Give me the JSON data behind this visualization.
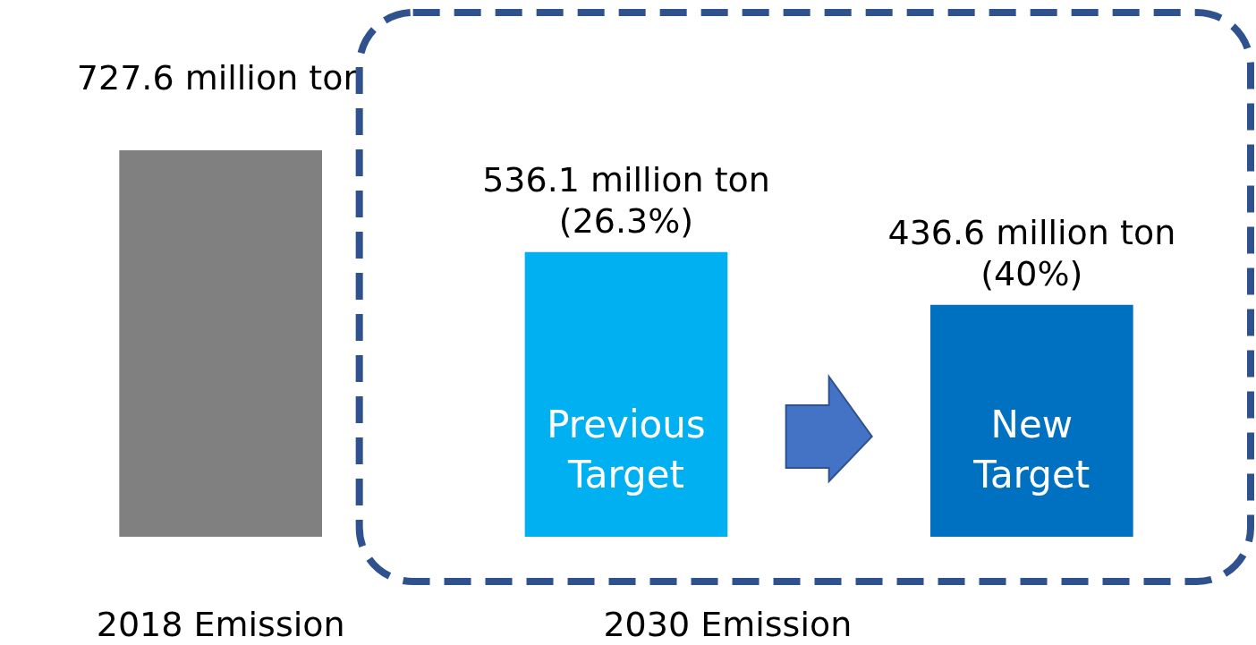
{
  "chart_data": {
    "type": "bar",
    "categories": [
      "2018 Emission",
      "Previous Target",
      "New Target"
    ],
    "values": [
      727.6,
      536.1,
      436.6
    ],
    "colors": [
      "#808080",
      "#00b0f0",
      "#0070c0"
    ],
    "value_labels": [
      "727.6 million ton",
      "536.1 million ton",
      "436.6 million ton"
    ],
    "annotations": [
      "(26.3%)",
      "(40%)",
      "2030 Emission"
    ],
    "grid": false
  }
}
